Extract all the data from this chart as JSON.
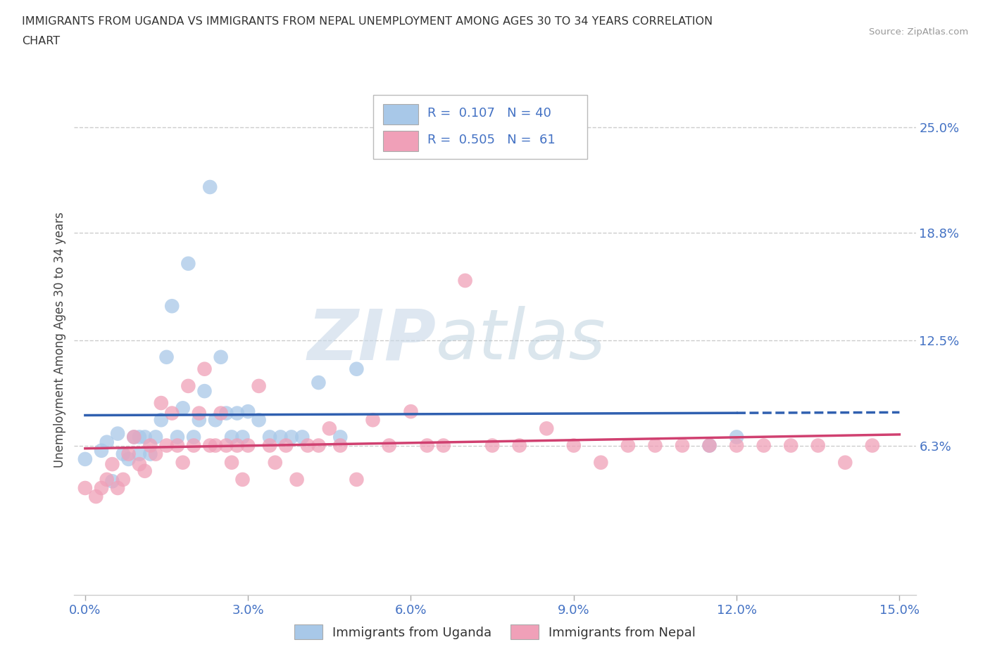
{
  "title_line1": "IMMIGRANTS FROM UGANDA VS IMMIGRANTS FROM NEPAL UNEMPLOYMENT AMONG AGES 30 TO 34 YEARS CORRELATION",
  "title_line2": "CHART",
  "source": "Source: ZipAtlas.com",
  "ylabel": "Unemployment Among Ages 30 to 34 years",
  "xlim": [
    -0.002,
    0.153
  ],
  "ylim": [
    -0.025,
    0.275
  ],
  "xticks": [
    0.0,
    0.03,
    0.06,
    0.09,
    0.12,
    0.15
  ],
  "xticklabels": [
    "0.0%",
    "3.0%",
    "6.0%",
    "9.0%",
    "12.0%",
    "15.0%"
  ],
  "yticks_right": [
    0.063,
    0.125,
    0.188,
    0.25
  ],
  "yticklabels_right": [
    "6.3%",
    "12.5%",
    "18.8%",
    "25.0%"
  ],
  "grid_color": "#cccccc",
  "watermark_zip": "ZIP",
  "watermark_atlas": "atlas",
  "uganda_color": "#a8c8e8",
  "nepal_color": "#f0a0b8",
  "uganda_line_color": "#3060b0",
  "nepal_line_color": "#d04070",
  "uganda_R": 0.107,
  "uganda_N": 40,
  "nepal_R": 0.505,
  "nepal_N": 61,
  "uganda_scatter_x": [
    0.0,
    0.003,
    0.004,
    0.005,
    0.006,
    0.007,
    0.008,
    0.009,
    0.01,
    0.01,
    0.011,
    0.012,
    0.013,
    0.014,
    0.015,
    0.016,
    0.017,
    0.018,
    0.019,
    0.02,
    0.021,
    0.022,
    0.023,
    0.024,
    0.025,
    0.026,
    0.027,
    0.028,
    0.029,
    0.03,
    0.032,
    0.034,
    0.036,
    0.038,
    0.04,
    0.043,
    0.047,
    0.05,
    0.115,
    0.12
  ],
  "uganda_scatter_y": [
    0.055,
    0.06,
    0.065,
    0.042,
    0.07,
    0.058,
    0.055,
    0.068,
    0.058,
    0.068,
    0.068,
    0.058,
    0.068,
    0.078,
    0.115,
    0.145,
    0.068,
    0.085,
    0.17,
    0.068,
    0.078,
    0.095,
    0.215,
    0.078,
    0.115,
    0.082,
    0.068,
    0.082,
    0.068,
    0.083,
    0.078,
    0.068,
    0.068,
    0.068,
    0.068,
    0.1,
    0.068,
    0.108,
    0.063,
    0.068
  ],
  "nepal_scatter_x": [
    0.0,
    0.002,
    0.003,
    0.004,
    0.005,
    0.006,
    0.007,
    0.008,
    0.009,
    0.01,
    0.011,
    0.012,
    0.013,
    0.014,
    0.015,
    0.016,
    0.017,
    0.018,
    0.019,
    0.02,
    0.021,
    0.022,
    0.023,
    0.024,
    0.025,
    0.026,
    0.027,
    0.028,
    0.029,
    0.03,
    0.032,
    0.034,
    0.035,
    0.037,
    0.039,
    0.041,
    0.043,
    0.045,
    0.047,
    0.05,
    0.053,
    0.056,
    0.06,
    0.063,
    0.066,
    0.07,
    0.075,
    0.08,
    0.085,
    0.09,
    0.095,
    0.1,
    0.105,
    0.11,
    0.115,
    0.12,
    0.125,
    0.13,
    0.135,
    0.14,
    0.145
  ],
  "nepal_scatter_y": [
    0.038,
    0.033,
    0.038,
    0.043,
    0.052,
    0.038,
    0.043,
    0.058,
    0.068,
    0.052,
    0.048,
    0.063,
    0.058,
    0.088,
    0.063,
    0.082,
    0.063,
    0.053,
    0.098,
    0.063,
    0.082,
    0.108,
    0.063,
    0.063,
    0.082,
    0.063,
    0.053,
    0.063,
    0.043,
    0.063,
    0.098,
    0.063,
    0.053,
    0.063,
    0.043,
    0.063,
    0.063,
    0.073,
    0.063,
    0.043,
    0.078,
    0.063,
    0.083,
    0.063,
    0.063,
    0.16,
    0.063,
    0.063,
    0.073,
    0.063,
    0.053,
    0.063,
    0.063,
    0.063,
    0.063,
    0.063,
    0.063,
    0.063,
    0.063,
    0.053,
    0.063
  ],
  "background_color": "#ffffff",
  "legend_box_color": "#ffffff",
  "legend_box_edge": "#cccccc",
  "label_color": "#4472c4"
}
